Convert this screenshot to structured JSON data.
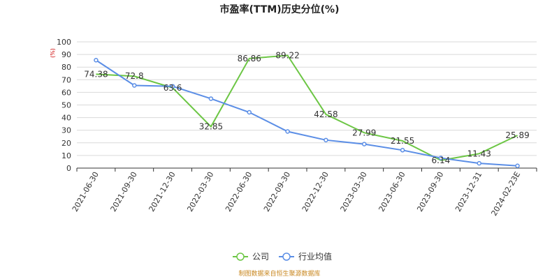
{
  "chart_data": {
    "type": "line",
    "title": "市盈率(TTM)历史分位(%)",
    "ylabel": "(%)",
    "ylim": [
      0,
      100
    ],
    "yticks": [
      0,
      10,
      20,
      30,
      40,
      50,
      60,
      70,
      80,
      90,
      100
    ],
    "categories": [
      "2021-06-30",
      "2021-09-30",
      "2021-12-30",
      "2022-03-30",
      "2022-06-30",
      "2022-09-30",
      "2022-12-30",
      "2023-03-30",
      "2023-06-30",
      "2023-09-30",
      "2023-12-31",
      "2024-02-23E"
    ],
    "grid": true,
    "legend_position": "bottom",
    "series": [
      {
        "name": "公司",
        "color": "#6cc644",
        "show_labels": true,
        "labels": [
          "74.38",
          "72.8",
          "63.6",
          "32.85",
          "86.86",
          "89.22",
          "42.58",
          "27.99",
          "21.55",
          "6.14",
          "11.43",
          "25.89"
        ],
        "values": [
          74.38,
          72.8,
          63.6,
          32.85,
          86.86,
          89.22,
          42.58,
          27.99,
          21.55,
          6.14,
          11.43,
          25.89
        ]
      },
      {
        "name": "行业均值",
        "color": "#5b8ee6",
        "show_labels": false,
        "values": [
          85.5,
          65.5,
          64.8,
          55,
          44.2,
          29,
          22.2,
          19,
          14.2,
          8,
          3.8,
          1.8
        ]
      }
    ],
    "source": "制图数据来自恒生聚源数据库"
  }
}
